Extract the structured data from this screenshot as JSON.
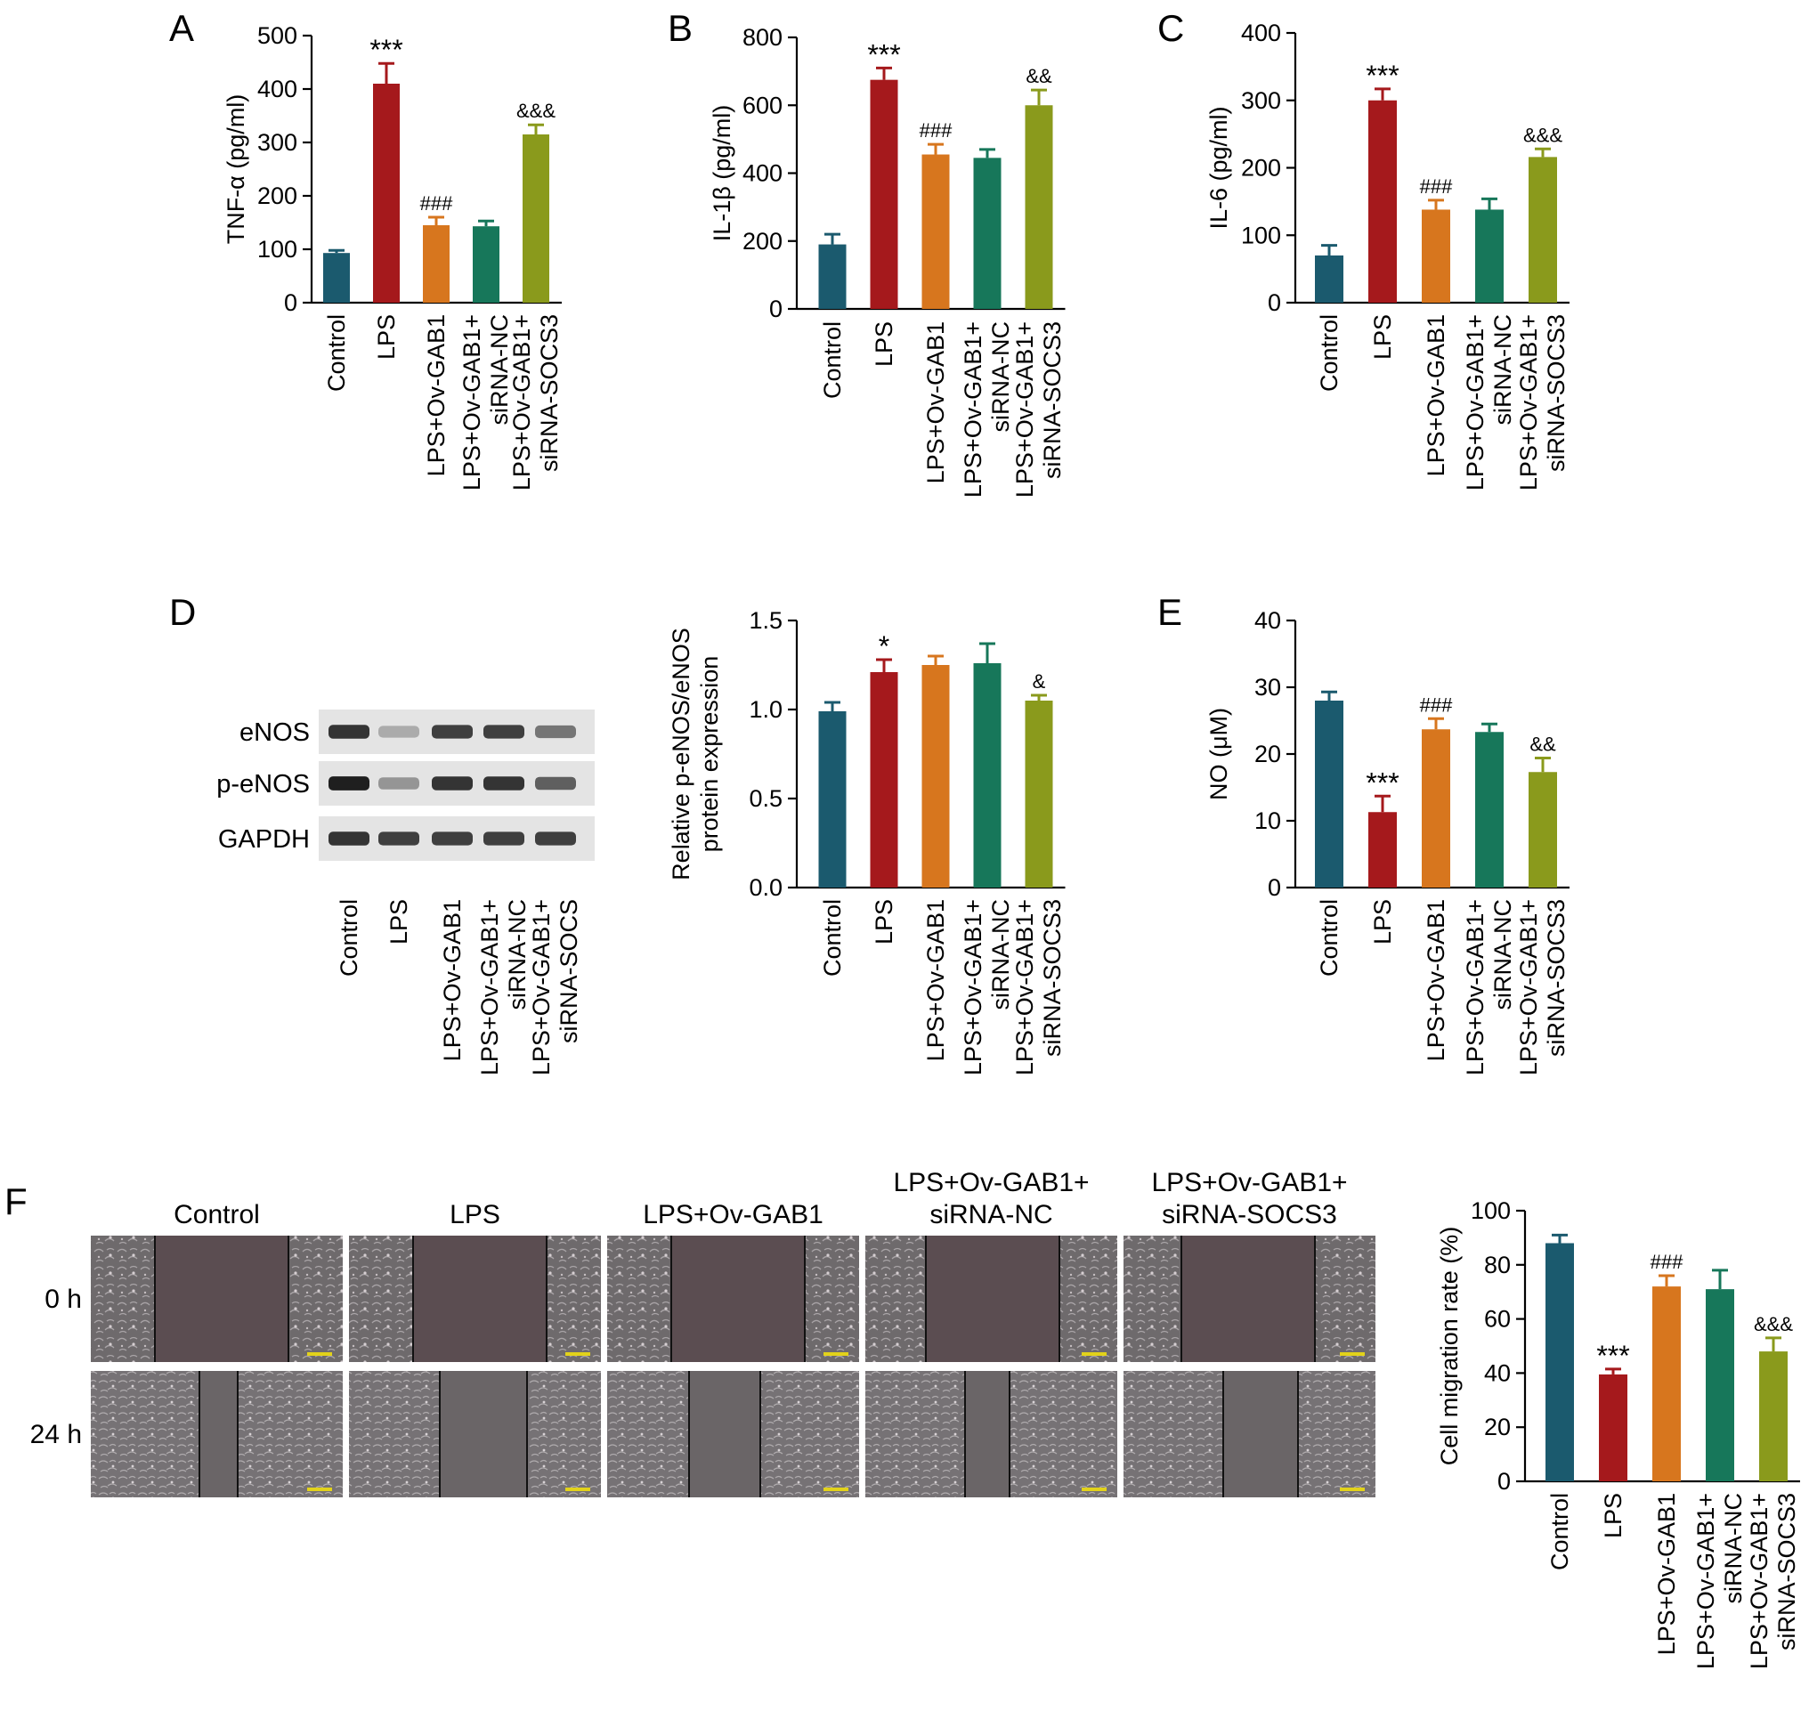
{
  "categories": [
    "Control",
    "LPS",
    "LPS+Ov-GAB1",
    "LPS+Ov-GAB1+|siRNA-NC",
    "LPS+Ov-GAB1+|siRNA-SOCS3"
  ],
  "colors": [
    "#1b5a6e",
    "#a5191c",
    "#d7761e",
    "#17775a",
    "#8a9a1c"
  ],
  "chart_data": [
    {
      "panel": "A",
      "type": "bar",
      "categories": [
        "Control",
        "LPS",
        "LPS+Ov-GAB1",
        "LPS+Ov-GAB1+ siRNA-NC",
        "LPS+Ov-GAB1+ siRNA-SOCS3"
      ],
      "values": [
        93,
        410,
        145,
        143,
        315
      ],
      "errors": [
        5,
        38,
        15,
        10,
        18
      ],
      "annotations": [
        "",
        "***",
        "###",
        "",
        "&&&"
      ],
      "ylabel": "TNF-α (pg/ml)",
      "ylim": [
        0,
        500
      ],
      "ticks": [
        0,
        100,
        200,
        300,
        400,
        500
      ]
    },
    {
      "panel": "B",
      "type": "bar",
      "categories": [
        "Control",
        "LPS",
        "LPS+Ov-GAB1",
        "LPS+Ov-GAB1+ siRNA-NC",
        "LPS+Ov-GAB1+ siRNA-SOCS3"
      ],
      "values": [
        190,
        675,
        455,
        445,
        600
      ],
      "errors": [
        30,
        35,
        30,
        25,
        45
      ],
      "annotations": [
        "",
        "***",
        "###",
        "",
        "&&"
      ],
      "ylabel": "IL-1β (pg/ml)",
      "ylim": [
        0,
        800
      ],
      "ticks": [
        0,
        200,
        400,
        600,
        800
      ]
    },
    {
      "panel": "C",
      "type": "bar",
      "categories": [
        "Control",
        "LPS",
        "LPS+Ov-GAB1",
        "LPS+Ov-GAB1+ siRNA-NC",
        "LPS+Ov-GAB1+ siRNA-SOCS3"
      ],
      "values": [
        70,
        300,
        138,
        138,
        216
      ],
      "errors": [
        15,
        17,
        14,
        16,
        12
      ],
      "annotations": [
        "",
        "***",
        "###",
        "",
        "&&&"
      ],
      "ylabel": "IL-6 (pg/ml)",
      "ylim": [
        0,
        400
      ],
      "ticks": [
        0,
        100,
        200,
        300,
        400
      ]
    },
    {
      "panel": "D",
      "type": "bar",
      "categories": [
        "Control",
        "LPS",
        "LPS+Ov-GAB1",
        "LPS+Ov-GAB1+ siRNA-NC",
        "LPS+Ov-GAB1+ siRNA-SOCS3"
      ],
      "values": [
        0.99,
        1.21,
        1.25,
        1.26,
        1.05
      ],
      "errors": [
        0.05,
        0.07,
        0.05,
        0.11,
        0.03
      ],
      "annotations": [
        "",
        "*",
        "",
        "",
        "&"
      ],
      "ylabel": "Relative p-eNOS/eNOS|protein expression",
      "ylim": [
        0,
        1.5
      ],
      "ticks": [
        "0.0",
        "0.5",
        "1.0",
        "1.5"
      ]
    },
    {
      "panel": "E",
      "type": "bar",
      "categories": [
        "Control",
        "LPS",
        "LPS+Ov-GAB1",
        "LPS+Ov-GAB1+ siRNA-NC",
        "LPS+Ov-GAB1+ siRNA-SOCS3"
      ],
      "values": [
        28,
        11.3,
        23.7,
        23.3,
        17.3
      ],
      "errors": [
        1.3,
        2.4,
        1.6,
        1.2,
        2.1
      ],
      "annotations": [
        "",
        "***",
        "###",
        "",
        "&&"
      ],
      "ylabel": "NO (μM)",
      "ylim": [
        0,
        40
      ],
      "ticks": [
        0,
        10,
        20,
        30,
        40
      ]
    },
    {
      "panel": "F",
      "type": "bar",
      "categories": [
        "Control",
        "LPS",
        "LPS+Ov-GAB1",
        "LPS+Ov-GAB1+ siRNA-NC",
        "LPS+Ov-GAB1+ siRNA-SOCS3"
      ],
      "values": [
        88,
        39.5,
        72,
        71,
        48
      ],
      "errors": [
        3,
        2,
        4,
        7,
        5
      ],
      "annotations": [
        "",
        "***",
        "###",
        "",
        "&&&"
      ],
      "ylabel": "Cell migration rate (%)",
      "ylim": [
        0,
        100
      ],
      "ticks": [
        0,
        20,
        40,
        60,
        80,
        100
      ]
    }
  ],
  "blot": {
    "panel": "D",
    "rows": [
      "eNOS",
      "p-eNOS",
      "GAPDH"
    ],
    "lanes": [
      "Control",
      "LPS",
      "LPS+Ov-GAB1",
      "LPS+Ov-GAB1+|siRNA-NC",
      "LPS+Ov-GAB1+|siRNA-SOCS"
    ],
    "band_intensity": [
      [
        0.85,
        0.3,
        0.8,
        0.8,
        0.55
      ],
      [
        0.95,
        0.4,
        0.85,
        0.85,
        0.65
      ],
      [
        0.85,
        0.8,
        0.8,
        0.8,
        0.8
      ]
    ]
  },
  "migration": {
    "panel": "F",
    "columns": [
      "Control",
      "LPS",
      "LPS+Ov-GAB1",
      "LPS+Ov-GAB1+|siRNA-NC",
      "LPS+Ov-GAB1+|siRNA-SOCS3"
    ],
    "rows": [
      "0 h",
      "24 h"
    ]
  }
}
